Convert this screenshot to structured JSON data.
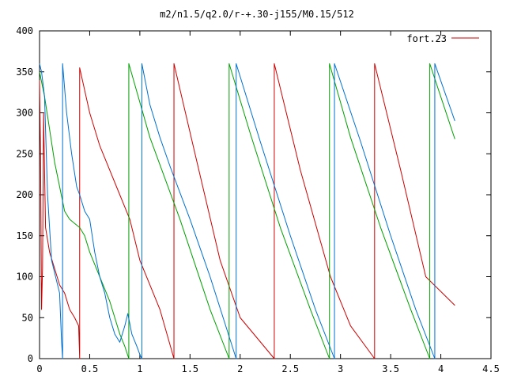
{
  "title": "m2/n1.5/q2.0/r-+.30-j155/M0.15/512",
  "colors": {
    "red": "#cc0000",
    "green": "#00a000",
    "blue": "#0070d0",
    "axis": "#000000",
    "background": "#ffffff"
  },
  "chart_data": {
    "type": "line",
    "title": "m2/n1.5/q2.0/r-+.30-j155/M0.15/512",
    "xlabel": "",
    "ylabel": "",
    "xlim": [
      0,
      4.5
    ],
    "ylim": [
      0,
      400
    ],
    "x_ticks": [
      "0",
      "0.5",
      "1",
      "1.5",
      "2",
      "2.5",
      "3",
      "3.5",
      "4",
      "4.5"
    ],
    "y_ticks": [
      "0",
      "50",
      "100",
      "150",
      "200",
      "250",
      "300",
      "350",
      "400"
    ],
    "grid": false,
    "legend_position": "top-right",
    "legend": [
      "fort.23"
    ],
    "series": [
      {
        "name": "fort.23",
        "color": "red",
        "points": [
          [
            0.0,
            340
          ],
          [
            0.01,
            250
          ],
          [
            0.02,
            60
          ],
          [
            0.03,
            110
          ],
          [
            0.04,
            300
          ],
          [
            0.05,
            230
          ],
          [
            0.06,
            160
          ],
          [
            0.1,
            130
          ],
          [
            0.15,
            110
          ],
          [
            0.2,
            90
          ],
          [
            0.25,
            80
          ],
          [
            0.3,
            60
          ],
          [
            0.35,
            50
          ],
          [
            0.39,
            40
          ],
          [
            0.4,
            0
          ],
          [
            0.4,
            355
          ],
          [
            0.5,
            300
          ],
          [
            0.6,
            260
          ],
          [
            0.7,
            230
          ],
          [
            0.8,
            200
          ],
          [
            0.9,
            170
          ],
          [
            1.0,
            120
          ],
          [
            1.1,
            90
          ],
          [
            1.2,
            60
          ],
          [
            1.34,
            0
          ],
          [
            1.34,
            360
          ],
          [
            1.55,
            250
          ],
          [
            1.8,
            120
          ],
          [
            2.0,
            50
          ],
          [
            2.34,
            0
          ],
          [
            2.34,
            360
          ],
          [
            2.6,
            230
          ],
          [
            2.9,
            100
          ],
          [
            3.1,
            40
          ],
          [
            3.34,
            0
          ],
          [
            3.34,
            360
          ],
          [
            3.6,
            230
          ],
          [
            3.85,
            100
          ],
          [
            4.14,
            65
          ]
        ]
      },
      {
        "name": "",
        "color": "green",
        "points": [
          [
            0.0,
            350
          ],
          [
            0.05,
            320
          ],
          [
            0.1,
            280
          ],
          [
            0.15,
            240
          ],
          [
            0.2,
            210
          ],
          [
            0.25,
            180
          ],
          [
            0.3,
            170
          ],
          [
            0.35,
            165
          ],
          [
            0.4,
            160
          ],
          [
            0.45,
            150
          ],
          [
            0.5,
            130
          ],
          [
            0.55,
            115
          ],
          [
            0.6,
            100
          ],
          [
            0.65,
            85
          ],
          [
            0.7,
            70
          ],
          [
            0.75,
            50
          ],
          [
            0.8,
            30
          ],
          [
            0.85,
            15
          ],
          [
            0.89,
            0
          ],
          [
            0.89,
            360
          ],
          [
            1.1,
            270
          ],
          [
            1.4,
            170
          ],
          [
            1.7,
            60
          ],
          [
            1.89,
            0
          ],
          [
            1.89,
            360
          ],
          [
            2.1,
            275
          ],
          [
            2.4,
            160
          ],
          [
            2.7,
            60
          ],
          [
            2.89,
            0
          ],
          [
            2.89,
            360
          ],
          [
            3.1,
            270
          ],
          [
            3.4,
            160
          ],
          [
            3.7,
            60
          ],
          [
            3.89,
            0
          ],
          [
            3.89,
            360
          ],
          [
            4.14,
            268
          ]
        ]
      },
      {
        "name": "",
        "color": "blue",
        "points": [
          [
            0.0,
            360
          ],
          [
            0.02,
            350
          ],
          [
            0.05,
            320
          ],
          [
            0.08,
            200
          ],
          [
            0.12,
            120
          ],
          [
            0.16,
            100
          ],
          [
            0.2,
            80
          ],
          [
            0.22,
            20
          ],
          [
            0.23,
            0
          ],
          [
            0.23,
            360
          ],
          [
            0.27,
            300
          ],
          [
            0.32,
            250
          ],
          [
            0.37,
            210
          ],
          [
            0.4,
            200
          ],
          [
            0.45,
            180
          ],
          [
            0.5,
            170
          ],
          [
            0.55,
            130
          ],
          [
            0.6,
            100
          ],
          [
            0.65,
            80
          ],
          [
            0.7,
            50
          ],
          [
            0.75,
            30
          ],
          [
            0.8,
            20
          ],
          [
            0.85,
            40
          ],
          [
            0.88,
            55
          ],
          [
            0.92,
            30
          ],
          [
            0.97,
            15
          ],
          [
            1.0,
            5
          ],
          [
            1.02,
            0
          ],
          [
            1.02,
            360
          ],
          [
            1.1,
            310
          ],
          [
            1.2,
            270
          ],
          [
            1.3,
            235
          ],
          [
            1.5,
            170
          ],
          [
            1.7,
            100
          ],
          [
            1.96,
            0
          ],
          [
            1.96,
            360
          ],
          [
            2.2,
            265
          ],
          [
            2.5,
            150
          ],
          [
            2.75,
            60
          ],
          [
            2.94,
            0
          ],
          [
            2.94,
            360
          ],
          [
            3.2,
            265
          ],
          [
            3.5,
            150
          ],
          [
            3.75,
            60
          ],
          [
            3.94,
            0
          ],
          [
            3.94,
            360
          ],
          [
            4.14,
            290
          ]
        ]
      }
    ]
  }
}
